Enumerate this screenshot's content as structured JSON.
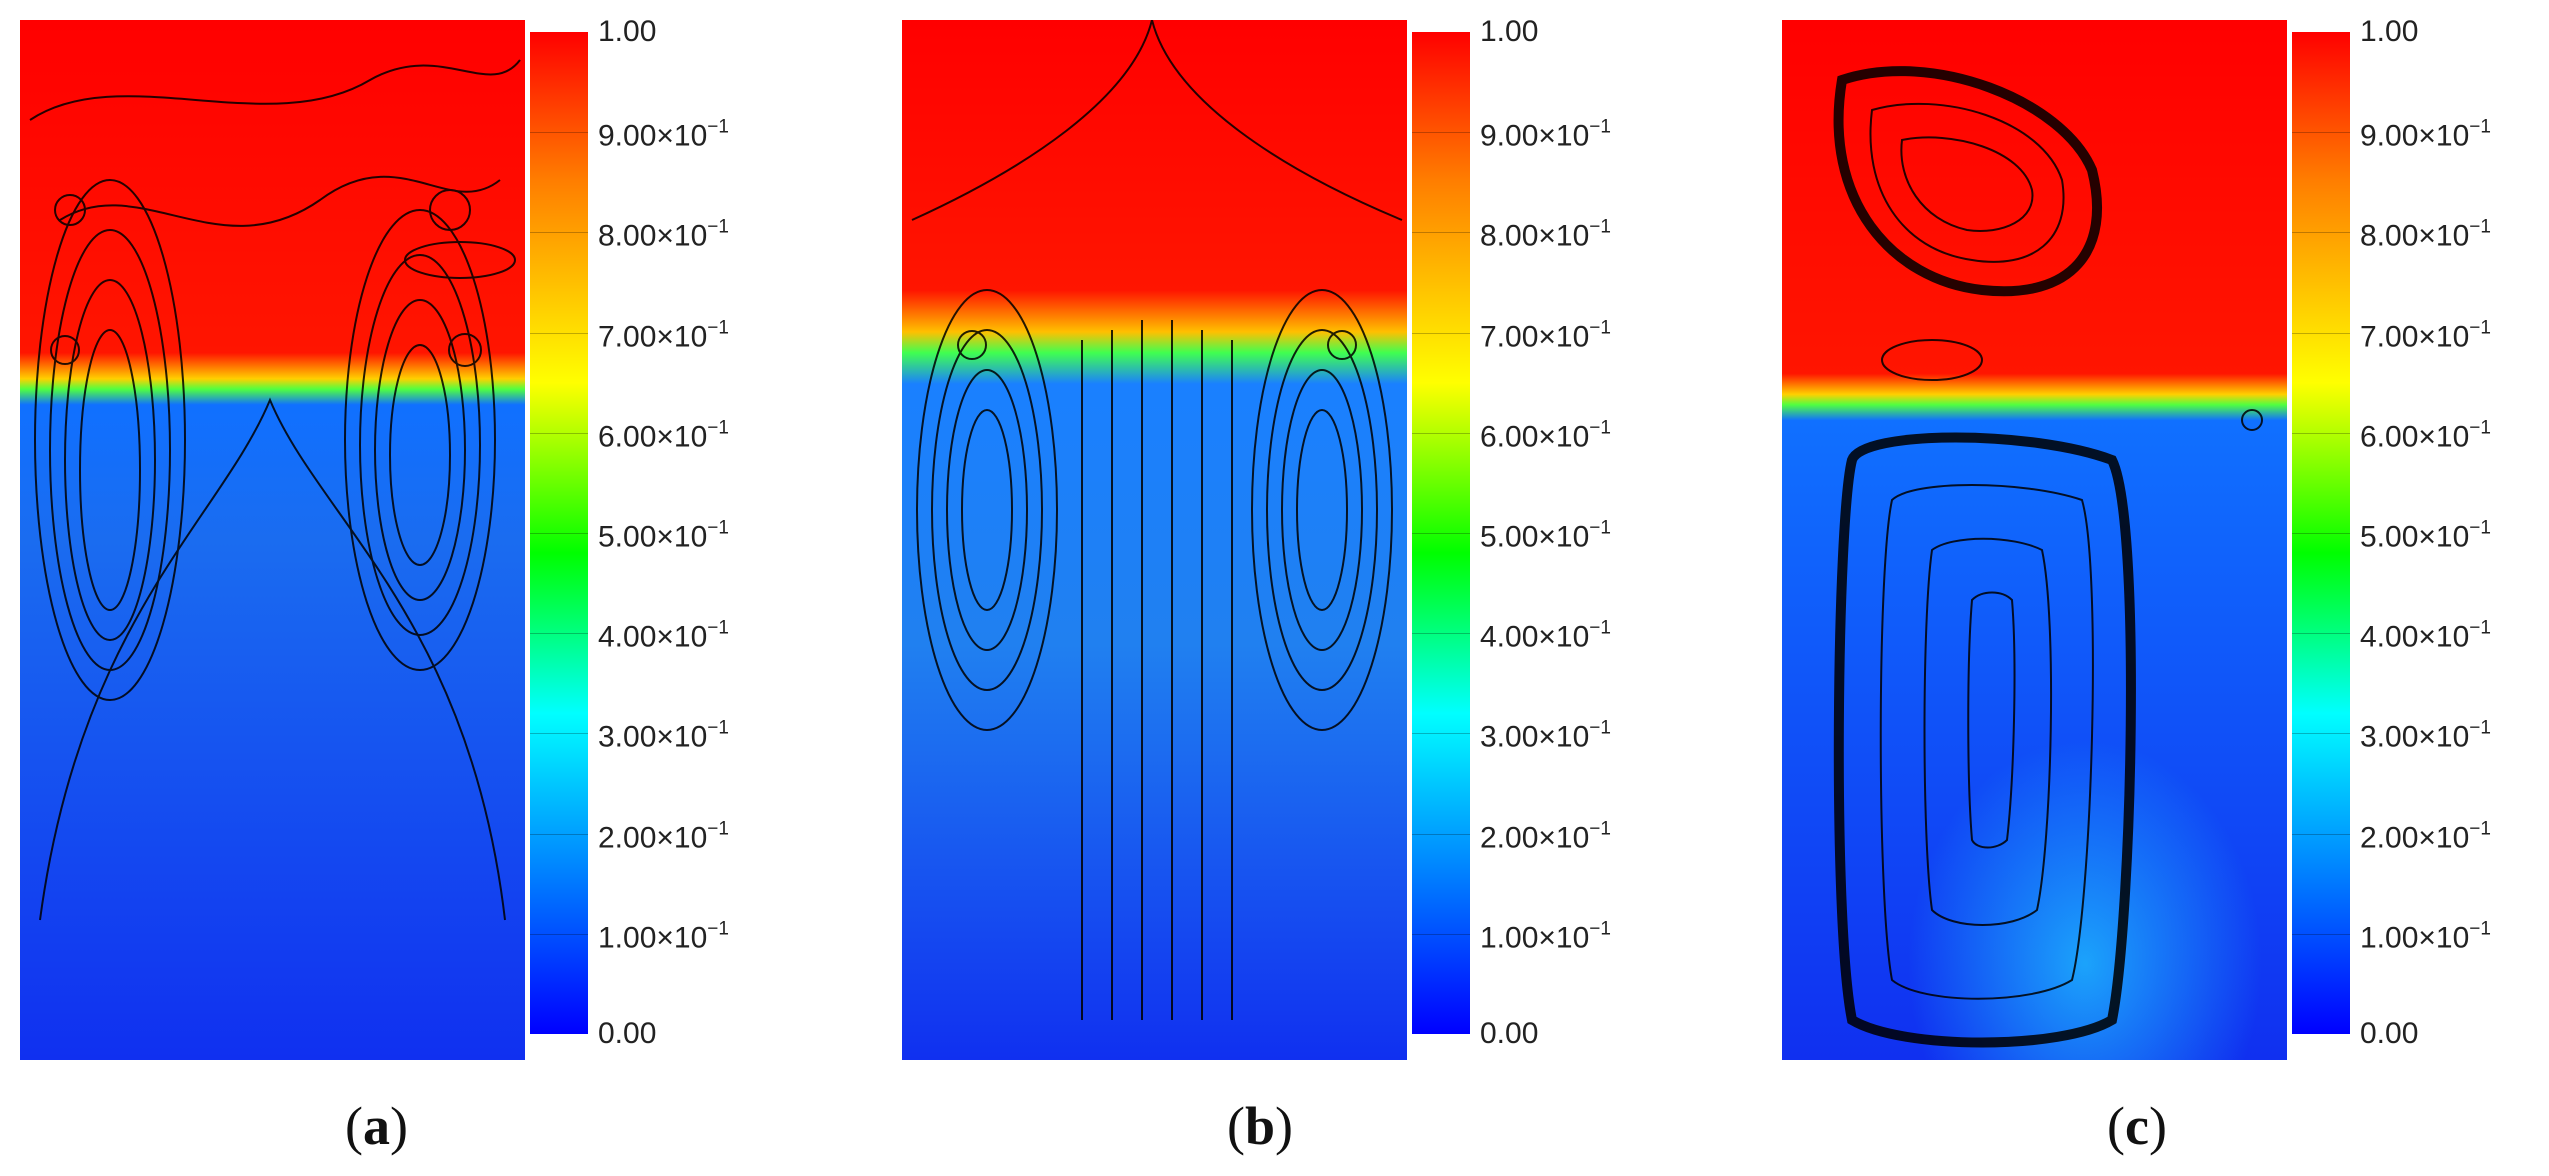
{
  "colorbar": {
    "ticks": [
      {
        "mantissa": "1.00",
        "exp": ""
      },
      {
        "mantissa": "9.00×10",
        "exp": "−1"
      },
      {
        "mantissa": "8.00×10",
        "exp": "−1"
      },
      {
        "mantissa": "7.00×10",
        "exp": "−1"
      },
      {
        "mantissa": "6.00×10",
        "exp": "−1"
      },
      {
        "mantissa": "5.00×10",
        "exp": "−1"
      },
      {
        "mantissa": "4.00×10",
        "exp": "−1"
      },
      {
        "mantissa": "3.00×10",
        "exp": "−1"
      },
      {
        "mantissa": "2.00×10",
        "exp": "−1"
      },
      {
        "mantissa": "1.00×10",
        "exp": "−1"
      },
      {
        "mantissa": "0.00",
        "exp": ""
      }
    ],
    "colors": [
      "#ff0000",
      "#ff7f00",
      "#ffff00",
      "#00ff00",
      "#00ffff",
      "#0080ff",
      "#0000ff"
    ]
  },
  "panels": [
    {
      "label_open": "(",
      "label_letter": "a",
      "label_close": ")",
      "interface_level": 0.36
    },
    {
      "label_open": "(",
      "label_letter": "b",
      "label_close": ")",
      "interface_level": 0.33
    },
    {
      "label_open": "(",
      "label_letter": "c",
      "label_close": ")",
      "interface_level": 0.37
    }
  ]
}
